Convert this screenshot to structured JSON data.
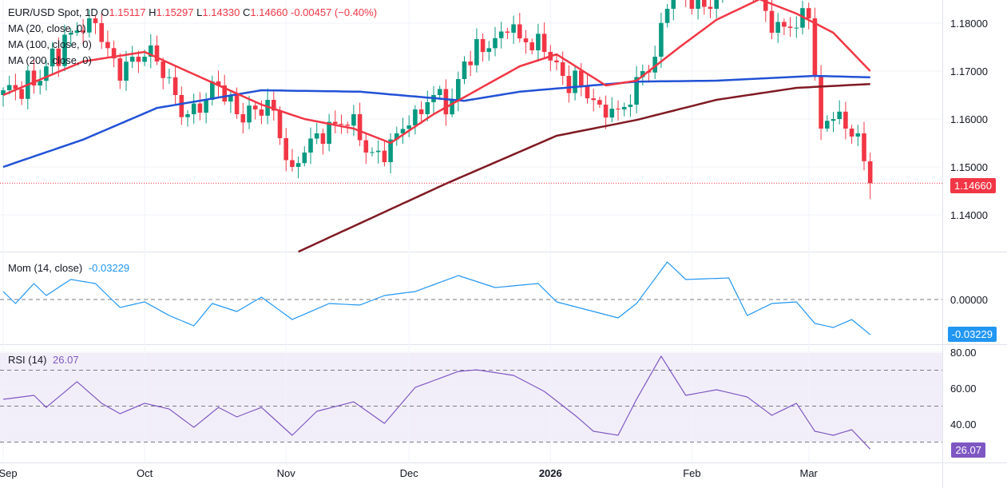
{
  "legend": {
    "symbol": "EUR/USD Spot, 1D",
    "o_label": "O",
    "o": "1.15117",
    "h_label": "H",
    "h": "1.15297",
    "l_label": "L",
    "l": "1.14330",
    "c_label": "C",
    "c": "1.14660",
    "change": "-0.00457 (−0.40%)",
    "ma20": "MA (20, close, 0)",
    "ma100": "MA (100, close, 0)",
    "ma200": "MA (200, close, 0)",
    "mom": "Mom (14, close)",
    "mom_value": "-0.03229",
    "rsi": "RSI (14)",
    "rsi_value": "26.07"
  },
  "colors": {
    "up": "#089981",
    "down": "#f23645",
    "ma20": "#f23645",
    "ma100": "#2151d6",
    "ma200": "#801922",
    "mom": "#2196f3",
    "rsi": "#7e57c2"
  },
  "chart_data": {
    "type": "candlestick",
    "title": "EUR/USD Spot, 1D",
    "price_axis": {
      "ticks": [
        "1.18000",
        "1.17000",
        "1.16000",
        "1.15000",
        "1.14000"
      ],
      "tick_values": [
        1.18,
        1.17,
        1.16,
        1.15,
        1.14
      ],
      "last_price": "1.14660"
    },
    "time_axis": {
      "labels": [
        "Sep",
        "Oct",
        "Nov",
        "Dec",
        "2026",
        "Feb",
        "Mar"
      ],
      "label_bars": [
        0,
        23,
        46,
        66,
        89,
        112,
        131
      ]
    },
    "last_bar": {
      "open": 1.15117,
      "high": 1.15297,
      "low": 1.1433,
      "close": 1.1466
    },
    "close_keypoints": {
      "bar": [
        0,
        5,
        11,
        14,
        15,
        19,
        21,
        23,
        25,
        28,
        30,
        33,
        35,
        38,
        41,
        43,
        45,
        47,
        49,
        51,
        54,
        57,
        59,
        62,
        64,
        67,
        70,
        73,
        75,
        78,
        82,
        85,
        88,
        91,
        94,
        97,
        100,
        102,
        104,
        106,
        108,
        110,
        112,
        115,
        118,
        121,
        123,
        125,
        128,
        131,
        132,
        133,
        135,
        137,
        139,
        140,
        141
      ],
      "close": [
        1.166,
        1.167,
        1.178,
        1.181,
        1.18,
        1.168,
        1.173,
        1.173,
        1.172,
        1.165,
        1.161,
        1.164,
        1.167,
        1.161,
        1.162,
        1.164,
        1.156,
        1.15,
        1.153,
        1.157,
        1.159,
        1.161,
        1.153,
        1.151,
        1.157,
        1.162,
        1.165,
        1.164,
        1.172,
        1.174,
        1.178,
        1.176,
        1.174,
        1.169,
        1.167,
        1.163,
        1.162,
        1.163,
        1.17,
        1.173,
        1.183,
        1.19,
        1.183,
        1.183,
        1.188,
        1.189,
        1.186,
        1.178,
        1.179,
        1.181,
        1.169,
        1.158,
        1.16,
        1.158,
        1.157,
        1.1512,
        1.1466
      ]
    },
    "ma20": {
      "bar": [
        0,
        13,
        23,
        29,
        42,
        49,
        57,
        63,
        70,
        77,
        84,
        90,
        98,
        103,
        110,
        116,
        123,
        129,
        135,
        141
      ],
      "value": [
        1.165,
        1.172,
        1.174,
        1.1705,
        1.163,
        1.16,
        1.158,
        1.155,
        1.161,
        1.166,
        1.171,
        1.1735,
        1.167,
        1.168,
        1.175,
        1.1807,
        1.185,
        1.182,
        1.178,
        1.17
      ]
    },
    "ma100": {
      "bar": [
        0,
        13,
        25,
        42,
        58,
        75,
        84,
        103,
        116,
        132,
        141
      ],
      "value": [
        1.15,
        1.1557,
        1.1623,
        1.166,
        1.1657,
        1.1638,
        1.1657,
        1.1678,
        1.168,
        1.169,
        1.1687
      ]
    },
    "ma200": {
      "bar": [
        48,
        72,
        90,
        103,
        116,
        129,
        141
      ],
      "value": [
        1.1323,
        1.1465,
        1.1565,
        1.1598,
        1.164,
        1.1665,
        1.1673
      ]
    },
    "momentum": {
      "axis_ticks": [
        "0.00000"
      ],
      "bar": [
        0,
        2,
        5,
        7,
        11,
        15,
        19,
        23,
        27,
        31,
        34,
        38,
        42,
        47,
        53,
        58,
        62,
        67,
        74,
        80,
        87,
        90,
        96,
        100,
        103,
        108,
        111,
        118,
        121,
        125,
        129,
        132,
        135,
        138,
        141
      ],
      "value": [
        0.0073,
        -0.0037,
        0.0147,
        0.0037,
        0.0184,
        0.0147,
        -0.0073,
        -0.0022,
        -0.0147,
        -0.0242,
        -0.0037,
        -0.011,
        0.0022,
        -0.0184,
        -0.0037,
        -0.0051,
        0.0037,
        0.0073,
        0.022,
        0.011,
        0.0147,
        -0.0022,
        -0.011,
        -0.0169,
        -0.0037,
        0.0345,
        0.0184,
        0.0198,
        -0.0147,
        -0.0037,
        -0.0022,
        -0.022,
        -0.0257,
        -0.0184,
        -0.03229
      ]
    },
    "rsi": {
      "axis_ticks": [
        "80.00",
        "60.00",
        "40.00"
      ],
      "levels": [
        70,
        50,
        30
      ],
      "bar": [
        0,
        5,
        7,
        12,
        16,
        19,
        23,
        27,
        31,
        35,
        38,
        42,
        47,
        51,
        57,
        62,
        67,
        74,
        77,
        83,
        88,
        93,
        96,
        100,
        103,
        107,
        111,
        116,
        121,
        125,
        129,
        132,
        135,
        138,
        141
      ],
      "value": [
        53.8,
        56,
        49.3,
        63.6,
        51.6,
        45.8,
        51.6,
        48.4,
        38.2,
        49.3,
        44,
        49.3,
        33.8,
        47.1,
        52.4,
        40.4,
        60.4,
        69.3,
        70.2,
        67.1,
        58.2,
        44.9,
        36,
        33.8,
        53.8,
        77.8,
        56,
        59.1,
        55.1,
        44.9,
        51.6,
        36,
        33.8,
        36.9,
        26.07
      ]
    }
  }
}
